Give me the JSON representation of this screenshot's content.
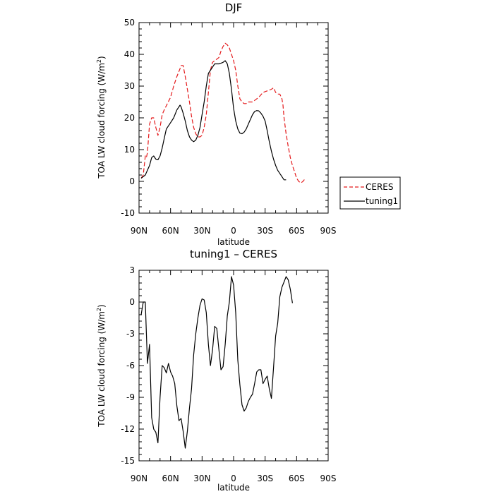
{
  "chart_data": [
    {
      "type": "line",
      "title": "DJF",
      "xlabel": "latitude",
      "ylabel": "TOA LW cloud forcing (W/m²)",
      "ylabel_main": "TOA LW cloud forcing (W/m",
      "ylabel_sup": "2",
      "ylabel_end": ")",
      "ylim": [
        -10,
        50
      ],
      "xlim": [
        90,
        -90
      ],
      "yticks": [
        -10,
        0,
        10,
        20,
        30,
        40,
        50
      ],
      "xticks": [
        90,
        60,
        30,
        0,
        -30,
        -60,
        -90
      ],
      "xticklabels": [
        "90N",
        "60N",
        "30N",
        "0",
        "30S",
        "60S",
        "90S"
      ],
      "legend_position": "right",
      "series": [
        {
          "name": "CERES",
          "color": "#e41a1c",
          "style": "dashed",
          "points": [
            [
              88,
              1
            ],
            [
              86,
              2
            ],
            [
              84,
              8
            ],
            [
              83,
              7.5
            ],
            [
              82,
              9
            ],
            [
              80,
              18
            ],
            [
              78,
              20
            ],
            [
              76,
              20
            ],
            [
              74,
              17
            ],
            [
              72,
              14.5
            ],
            [
              70,
              17
            ],
            [
              68,
              21
            ],
            [
              66,
              22.5
            ],
            [
              63,
              24.5
            ],
            [
              60,
              26.5
            ],
            [
              57,
              30
            ],
            [
              54,
              33
            ],
            [
              51,
              35.5
            ],
            [
              50,
              36.5
            ],
            [
              48,
              36.5
            ],
            [
              46,
              33
            ],
            [
              44,
              29
            ],
            [
              42,
              25
            ],
            [
              40,
              20.5
            ],
            [
              38,
              17
            ],
            [
              36,
              15
            ],
            [
              34,
              14
            ],
            [
              32,
              14
            ],
            [
              30,
              14.5
            ],
            [
              28,
              17
            ],
            [
              26,
              21
            ],
            [
              24,
              28
            ],
            [
              22,
              35
            ],
            [
              20,
              37.5
            ],
            [
              18,
              38
            ],
            [
              16,
              38.5
            ],
            [
              14,
              39
            ],
            [
              12,
              41
            ],
            [
              10,
              42.5
            ],
            [
              8,
              43.5
            ],
            [
              6,
              43
            ],
            [
              4,
              42
            ],
            [
              2,
              40
            ],
            [
              0,
              38
            ],
            [
              -2,
              35
            ],
            [
              -4,
              30
            ],
            [
              -6,
              26
            ],
            [
              -8,
              25
            ],
            [
              -10,
              24.5
            ],
            [
              -12,
              24.5
            ],
            [
              -14,
              25
            ],
            [
              -16,
              25
            ],
            [
              -18,
              25
            ],
            [
              -20,
              25.5
            ],
            [
              -24,
              26.5
            ],
            [
              -28,
              28
            ],
            [
              -32,
              28.5
            ],
            [
              -36,
              29
            ],
            [
              -38,
              29.5
            ],
            [
              -40,
              28
            ],
            [
              -42,
              27.5
            ],
            [
              -44,
              27.5
            ],
            [
              -46,
              26
            ],
            [
              -47,
              24
            ],
            [
              -48,
              20
            ],
            [
              -50,
              15
            ],
            [
              -52,
              11
            ],
            [
              -54,
              7.5
            ],
            [
              -56,
              5
            ],
            [
              -58,
              3
            ],
            [
              -60,
              1
            ],
            [
              -62,
              0
            ],
            [
              -64,
              -0.5
            ],
            [
              -66,
              0
            ],
            [
              -68,
              0.8
            ]
          ]
        },
        {
          "name": "tuning1",
          "color": "#000000",
          "style": "solid",
          "points": [
            [
              88,
              1
            ],
            [
              86,
              1.5
            ],
            [
              84,
              2
            ],
            [
              82,
              3.5
            ],
            [
              80,
              5
            ],
            [
              78,
              7.5
            ],
            [
              76,
              8
            ],
            [
              74,
              7
            ],
            [
              72,
              6.8
            ],
            [
              70,
              8
            ],
            [
              68,
              10.5
            ],
            [
              66,
              13.5
            ],
            [
              64,
              16.5
            ],
            [
              62,
              17.5
            ],
            [
              60,
              18.5
            ],
            [
              57,
              20
            ],
            [
              54,
              22.5
            ],
            [
              51,
              24
            ],
            [
              50,
              23.5
            ],
            [
              48,
              21.5
            ],
            [
              46,
              19
            ],
            [
              44,
              16
            ],
            [
              42,
              14
            ],
            [
              40,
              13
            ],
            [
              38,
              12.5
            ],
            [
              36,
              13
            ],
            [
              34,
              14.5
            ],
            [
              32,
              17
            ],
            [
              30,
              21
            ],
            [
              28,
              25
            ],
            [
              26,
              30
            ],
            [
              24,
              34
            ],
            [
              22,
              35
            ],
            [
              20,
              36
            ],
            [
              18,
              37
            ],
            [
              16,
              37
            ],
            [
              14,
              37
            ],
            [
              12,
              37.2
            ],
            [
              10,
              37.5
            ],
            [
              8,
              38
            ],
            [
              6,
              37
            ],
            [
              4,
              34
            ],
            [
              2,
              29
            ],
            [
              0,
              23
            ],
            [
              -2,
              19
            ],
            [
              -4,
              16.5
            ],
            [
              -6,
              15.2
            ],
            [
              -8,
              15
            ],
            [
              -10,
              15.5
            ],
            [
              -12,
              16.5
            ],
            [
              -14,
              18
            ],
            [
              -16,
              19.5
            ],
            [
              -18,
              21
            ],
            [
              -20,
              22
            ],
            [
              -22,
              22.3
            ],
            [
              -24,
              22.2
            ],
            [
              -26,
              21.5
            ],
            [
              -28,
              20.5
            ],
            [
              -30,
              19
            ],
            [
              -32,
              16
            ],
            [
              -34,
              12.5
            ],
            [
              -36,
              9.5
            ],
            [
              -38,
              7
            ],
            [
              -40,
              5
            ],
            [
              -42,
              3.5
            ],
            [
              -44,
              2.5
            ],
            [
              -46,
              1.5
            ],
            [
              -48,
              0.5
            ],
            [
              -50,
              0.5
            ]
          ]
        }
      ]
    },
    {
      "type": "line",
      "title": "tuning1 – CERES",
      "xlabel": "latitude",
      "ylabel": "TOA LW cloud forcing (W/m²)",
      "ylabel_main": "TOA LW cloud forcing (W/m",
      "ylabel_sup": "2",
      "ylabel_end": ")",
      "ylim": [
        -15,
        3
      ],
      "xlim": [
        90,
        -90
      ],
      "yticks": [
        -15,
        -12,
        -9,
        -6,
        -3,
        0,
        3
      ],
      "xticks": [
        90,
        60,
        30,
        0,
        -30,
        -60,
        -90
      ],
      "xticklabels": [
        "90N",
        "60N",
        "30N",
        "0",
        "30S",
        "60S",
        "90S"
      ],
      "series": [
        {
          "color": "#000000",
          "style": "solid",
          "points": [
            [
              88,
              -1.2
            ],
            [
              86,
              0
            ],
            [
              84,
              0
            ],
            [
              82,
              -5.8
            ],
            [
              80,
              -4
            ],
            [
              78,
              -10.9
            ],
            [
              76,
              -12
            ],
            [
              74,
              -12.3
            ],
            [
              72,
              -13.3
            ],
            [
              70,
              -9
            ],
            [
              68,
              -6
            ],
            [
              66,
              -6.2
            ],
            [
              64,
              -6.7
            ],
            [
              62,
              -5.8
            ],
            [
              60,
              -6.6
            ],
            [
              58,
              -7
            ],
            [
              56,
              -7.7
            ],
            [
              54,
              -9.8
            ],
            [
              52,
              -11.2
            ],
            [
              50,
              -11
            ],
            [
              48,
              -12.2
            ],
            [
              46,
              -13.8
            ],
            [
              44,
              -12.2
            ],
            [
              42,
              -10
            ],
            [
              40,
              -8.2
            ],
            [
              38,
              -5
            ],
            [
              36,
              -3
            ],
            [
              34,
              -1.5
            ],
            [
              32,
              -0.3
            ],
            [
              30,
              0.3
            ],
            [
              28,
              0.2
            ],
            [
              26,
              -1
            ],
            [
              24,
              -4
            ],
            [
              22,
              -6
            ],
            [
              20,
              -4.5
            ],
            [
              18,
              -2.3
            ],
            [
              16,
              -2.5
            ],
            [
              14,
              -4.5
            ],
            [
              12,
              -6.4
            ],
            [
              10,
              -6.1
            ],
            [
              8,
              -4
            ],
            [
              6,
              -1.3
            ],
            [
              4,
              0
            ],
            [
              2,
              2.4
            ],
            [
              0,
              1.6
            ],
            [
              -2,
              -1
            ],
            [
              -4,
              -5.5
            ],
            [
              -6,
              -7.8
            ],
            [
              -8,
              -9.7
            ],
            [
              -10,
              -10.3
            ],
            [
              -12,
              -10
            ],
            [
              -14,
              -9.4
            ],
            [
              -16,
              -9
            ],
            [
              -18,
              -8.7
            ],
            [
              -20,
              -7.7
            ],
            [
              -22,
              -6.6
            ],
            [
              -24,
              -6.4
            ],
            [
              -26,
              -6.4
            ],
            [
              -28,
              -7.7
            ],
            [
              -30,
              -7.3
            ],
            [
              -32,
              -7
            ],
            [
              -34,
              -8.2
            ],
            [
              -36,
              -9.1
            ],
            [
              -38,
              -6.2
            ],
            [
              -40,
              -3.2
            ],
            [
              -42,
              -2
            ],
            [
              -44,
              0.5
            ],
            [
              -46,
              1.4
            ],
            [
              -48,
              1.9
            ],
            [
              -50,
              2.4
            ],
            [
              -52,
              2.1
            ],
            [
              -54,
              1.2
            ],
            [
              -56,
              -0.1
            ]
          ]
        }
      ]
    }
  ]
}
